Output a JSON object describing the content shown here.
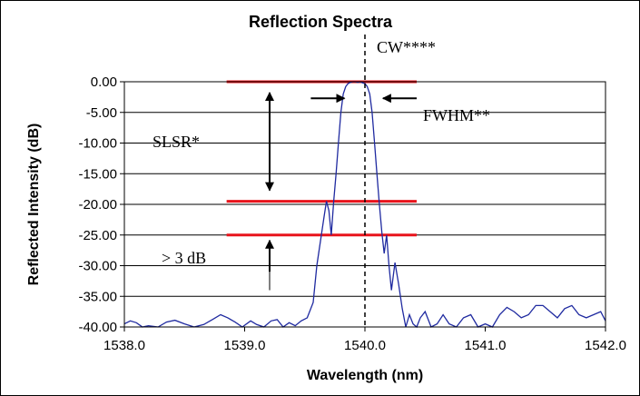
{
  "chart_data": {
    "type": "line",
    "title": "Reflection Spectra",
    "xlabel": "Wavelength (nm)",
    "ylabel": "Reflected Intensity (dB)",
    "xlim": [
      1538.0,
      1542.0
    ],
    "ylim": [
      -40.0,
      0.0
    ],
    "xticks": [
      "1538.0",
      "1539.0",
      "1540.0",
      "1541.0",
      "1542.0"
    ],
    "yticks": [
      "0.00",
      "-5.00",
      "-10.00",
      "-15.00",
      "-20.00",
      "-25.00",
      "-30.00",
      "-35.00",
      "-40.00"
    ],
    "grid": "horizontal",
    "series": [
      {
        "color": "#1f2aa0",
        "x": [
          1538.0,
          1538.05,
          1538.1,
          1538.15,
          1538.2,
          1538.28,
          1538.35,
          1538.42,
          1538.5,
          1538.58,
          1538.66,
          1538.74,
          1538.8,
          1538.86,
          1538.92,
          1538.98,
          1539.05,
          1539.1,
          1539.16,
          1539.22,
          1539.27,
          1539.32,
          1539.37,
          1539.42,
          1539.47,
          1539.52,
          1539.57,
          1539.6,
          1539.63,
          1539.66,
          1539.68,
          1539.7,
          1539.72,
          1539.74,
          1539.76,
          1539.78,
          1539.8,
          1539.82,
          1539.84,
          1539.86,
          1539.88,
          1539.9,
          1539.92,
          1539.94,
          1539.96,
          1539.98,
          1540.0,
          1540.02,
          1540.04,
          1540.06,
          1540.08,
          1540.1,
          1540.12,
          1540.14,
          1540.16,
          1540.18,
          1540.2,
          1540.22,
          1540.25,
          1540.28,
          1540.31,
          1540.34,
          1540.37,
          1540.4,
          1540.43,
          1540.46,
          1540.5,
          1540.55,
          1540.6,
          1540.65,
          1540.7,
          1540.76,
          1540.82,
          1540.88,
          1540.94,
          1541.0,
          1541.06,
          1541.12,
          1541.18,
          1541.24,
          1541.3,
          1541.36,
          1541.42,
          1541.48,
          1541.54,
          1541.6,
          1541.66,
          1541.72,
          1541.78,
          1541.84,
          1541.9,
          1541.96,
          1542.0
        ],
        "y": [
          -39.5,
          -39.0,
          -39.3,
          -40.0,
          -39.8,
          -40.0,
          -39.2,
          -38.9,
          -39.5,
          -40.0,
          -39.6,
          -38.7,
          -38.0,
          -38.5,
          -39.2,
          -40.0,
          -39.0,
          -39.6,
          -40.0,
          -39.0,
          -38.8,
          -40.0,
          -39.3,
          -39.8,
          -39.0,
          -38.5,
          -36.0,
          -30.0,
          -26.0,
          -22.0,
          -19.5,
          -21.0,
          -25.0,
          -19.5,
          -15.0,
          -10.0,
          -5.0,
          -2.0,
          -0.8,
          -0.3,
          -0.1,
          0.0,
          0.0,
          -0.1,
          0.0,
          -0.2,
          -0.3,
          -0.8,
          -2.0,
          -5.0,
          -10.0,
          -15.0,
          -20.0,
          -24.5,
          -28.0,
          -25.0,
          -30.0,
          -34.0,
          -29.5,
          -33.0,
          -37.0,
          -40.0,
          -38.0,
          -39.5,
          -40.0,
          -38.5,
          -37.5,
          -40.0,
          -39.5,
          -38.0,
          -39.5,
          -40.0,
          -38.5,
          -38.0,
          -40.0,
          -39.5,
          -40.0,
          -38.0,
          -36.8,
          -37.5,
          -38.5,
          -38.0,
          -36.5,
          -36.5,
          -37.5,
          -38.5,
          -37.0,
          -36.5,
          -38.0,
          -38.5,
          -38.0,
          -37.5,
          -39.0
        ]
      }
    ],
    "markers": {
      "center_wavelength_x": 1540.0,
      "red_levels": [
        0.0,
        -19.5,
        -25.0
      ],
      "red_x_range": [
        1538.85,
        1540.43
      ],
      "red_color": "#e8141c"
    },
    "annotations": {
      "cw": "CW****",
      "fwhm": "FWHM**",
      "slsr": "SLSR*",
      "gt3db": "> 3 dB"
    }
  }
}
